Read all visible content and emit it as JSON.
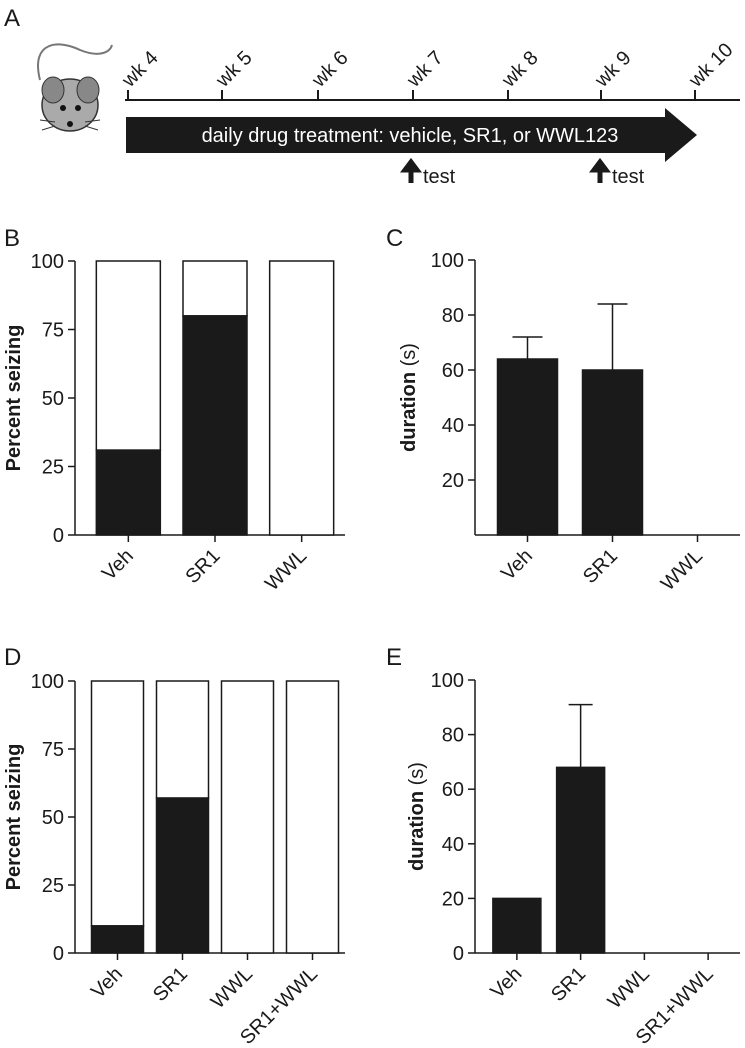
{
  "timeline": {
    "label": "A",
    "weeks": [
      "wk 4",
      "wk 5",
      "wk 6",
      "wk 7",
      "wk 8",
      "wk 9",
      "wk 10"
    ],
    "treatment": "daily drug treatment: vehicle, SR1, or WWL123",
    "tests": [
      "test",
      "test"
    ]
  },
  "chart_data": [
    {
      "type": "bar",
      "label": "B",
      "ylabel": "Percent seizing",
      "stacked": true,
      "categories": [
        "Veh",
        "SR1",
        "WWL"
      ],
      "series": [
        {
          "color": "#1a1a1a",
          "values": [
            31,
            80,
            0
          ]
        },
        {
          "color": "#ffffff",
          "values": [
            69,
            20,
            100
          ]
        }
      ],
      "ylim": [
        0,
        100
      ],
      "yticks": [
        0,
        25,
        50,
        75,
        100
      ]
    },
    {
      "type": "bar",
      "label": "C",
      "ylabel": "duration",
      "ylabel_unit": "(s)",
      "categories": [
        "Veh",
        "SR1",
        "WWL"
      ],
      "values": [
        64,
        60,
        0
      ],
      "errors": [
        8,
        24,
        0
      ],
      "color": "#1a1a1a",
      "ylim": [
        0,
        100
      ],
      "yticks": [
        20,
        40,
        60,
        80,
        100
      ]
    },
    {
      "type": "bar",
      "label": "D",
      "ylabel": "Percent seizing",
      "stacked": true,
      "categories": [
        "Veh",
        "SR1",
        "WWL",
        "SR1+WWL"
      ],
      "series": [
        {
          "color": "#1a1a1a",
          "values": [
            10,
            57,
            0,
            0
          ]
        },
        {
          "color": "#ffffff",
          "values": [
            90,
            43,
            100,
            100
          ]
        }
      ],
      "ylim": [
        0,
        100
      ],
      "yticks": [
        0,
        25,
        50,
        75,
        100
      ]
    },
    {
      "type": "bar",
      "label": "E",
      "ylabel": "duration",
      "ylabel_unit": "(s)",
      "categories": [
        "Veh",
        "SR1",
        "WWL",
        "SR1+WWL"
      ],
      "values": [
        20,
        68,
        0,
        0
      ],
      "errors": [
        0,
        23,
        0,
        0
      ],
      "color": "#1a1a1a",
      "ylim": [
        0,
        100
      ],
      "yticks": [
        0,
        20,
        40,
        60,
        80,
        100
      ]
    }
  ]
}
